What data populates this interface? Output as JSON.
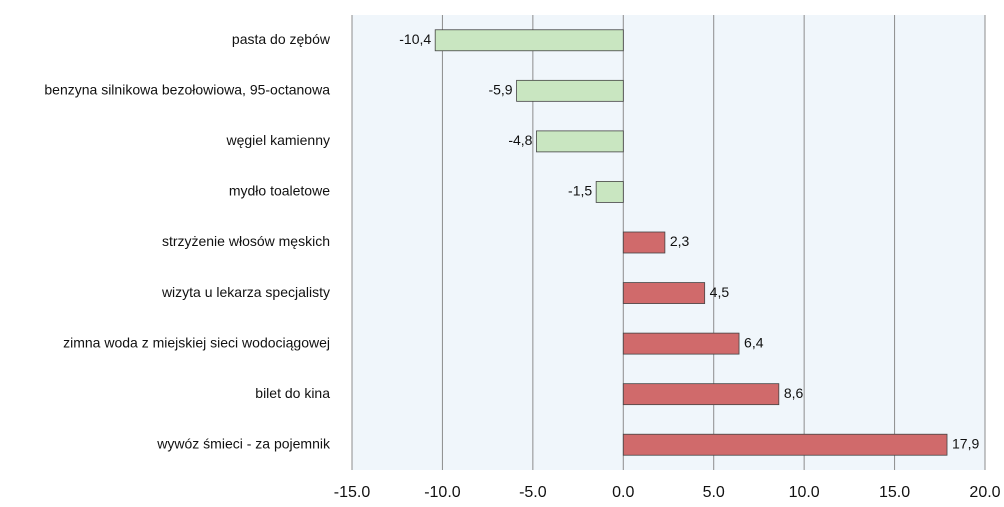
{
  "chart_data": {
    "type": "barh",
    "categories": [
      "pasta do zębów",
      "benzyna silnikowa bezołowiowa, 95-octanowa",
      "węgiel kamienny",
      "mydło toaletowe",
      "strzyżenie włosów męskich",
      "wizyta u lekarza specjalisty",
      "zimna woda z miejskiej sieci wodociągowej",
      "bilet do kina",
      "wywóz śmieci - za pojemnik"
    ],
    "values": [
      -10.4,
      -5.9,
      -4.8,
      -1.5,
      2.3,
      4.5,
      6.4,
      8.6,
      17.9
    ],
    "value_labels": [
      "-10,4",
      "-5,9",
      "-4,8",
      "-1,5",
      "2,3",
      "4,5",
      "6,4",
      "8,6",
      "17,9"
    ],
    "colors": [
      "#c9e6c1",
      "#c9e6c1",
      "#c9e6c1",
      "#c9e6c1",
      "#d06a6b",
      "#d06a6b",
      "#d06a6b",
      "#d06a6b",
      "#d06a6b"
    ],
    "xlim": [
      -15,
      20
    ],
    "xticks": [
      {
        "value": -15,
        "label": "-15.0"
      },
      {
        "value": -10,
        "label": "-10.0"
      },
      {
        "value": -5,
        "label": "-5.0"
      },
      {
        "value": 0,
        "label": "0.0"
      },
      {
        "value": 5,
        "label": "5.0"
      },
      {
        "value": 10,
        "label": "10.0"
      },
      {
        "value": 15,
        "label": "15.0"
      },
      {
        "value": 20,
        "label": "20.0"
      }
    ],
    "grid": true
  }
}
